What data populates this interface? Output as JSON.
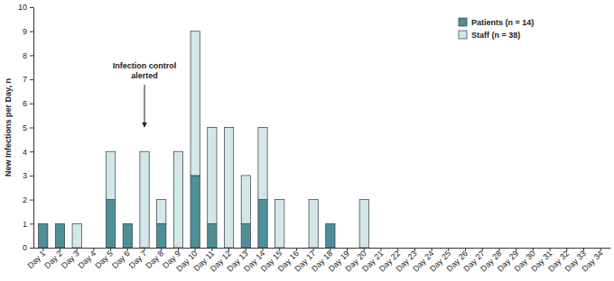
{
  "chart_data": {
    "type": "bar",
    "stacked": true,
    "y_label": "New Infections per Day, n",
    "categories": [
      "Day 1",
      "Day 2",
      "Day 3",
      "Day 4",
      "Day 5",
      "Day 6",
      "Day 7",
      "Day 8",
      "Day 9",
      "Day 10",
      "Day 11",
      "Day 12",
      "Day 13",
      "Day 14",
      "Day 15",
      "Day 16",
      "Day 17",
      "Day 18",
      "Day 19",
      "Day 20",
      "Day 21",
      "Day 22",
      "Day 23",
      "Day 24",
      "Day 25",
      "Day 26",
      "Day 27",
      "Day 28",
      "Day 29",
      "Day 30",
      "Day 31",
      "Day 32",
      "Day 33",
      "Day 34"
    ],
    "series": [
      {
        "name": "Patients (n = 14)",
        "color": "#4f8f98",
        "values": [
          1,
          1,
          0,
          0,
          2,
          1,
          0,
          1,
          0,
          3,
          1,
          0,
          1,
          2,
          0,
          0,
          0,
          1,
          0,
          0,
          0,
          0,
          0,
          0,
          0,
          0,
          0,
          0,
          0,
          0,
          0,
          0,
          0,
          0
        ]
      },
      {
        "name": "Staff (n = 38)",
        "color": "#d3e6ea",
        "values": [
          0,
          0,
          1,
          0,
          2,
          0,
          4,
          1,
          4,
          6,
          4,
          5,
          2,
          3,
          2,
          0,
          2,
          0,
          0,
          2,
          0,
          0,
          0,
          0,
          0,
          0,
          0,
          0,
          0,
          0,
          0,
          0,
          0,
          0
        ]
      }
    ],
    "ylim": [
      0,
      10
    ],
    "yticks": [
      0,
      1,
      2,
      3,
      4,
      5,
      6,
      7,
      8,
      9,
      10
    ],
    "grid": false,
    "legend": "top-right",
    "annotations": [
      {
        "text": [
          "Infection control",
          "alerted"
        ],
        "x": "Day 7"
      }
    ]
  }
}
